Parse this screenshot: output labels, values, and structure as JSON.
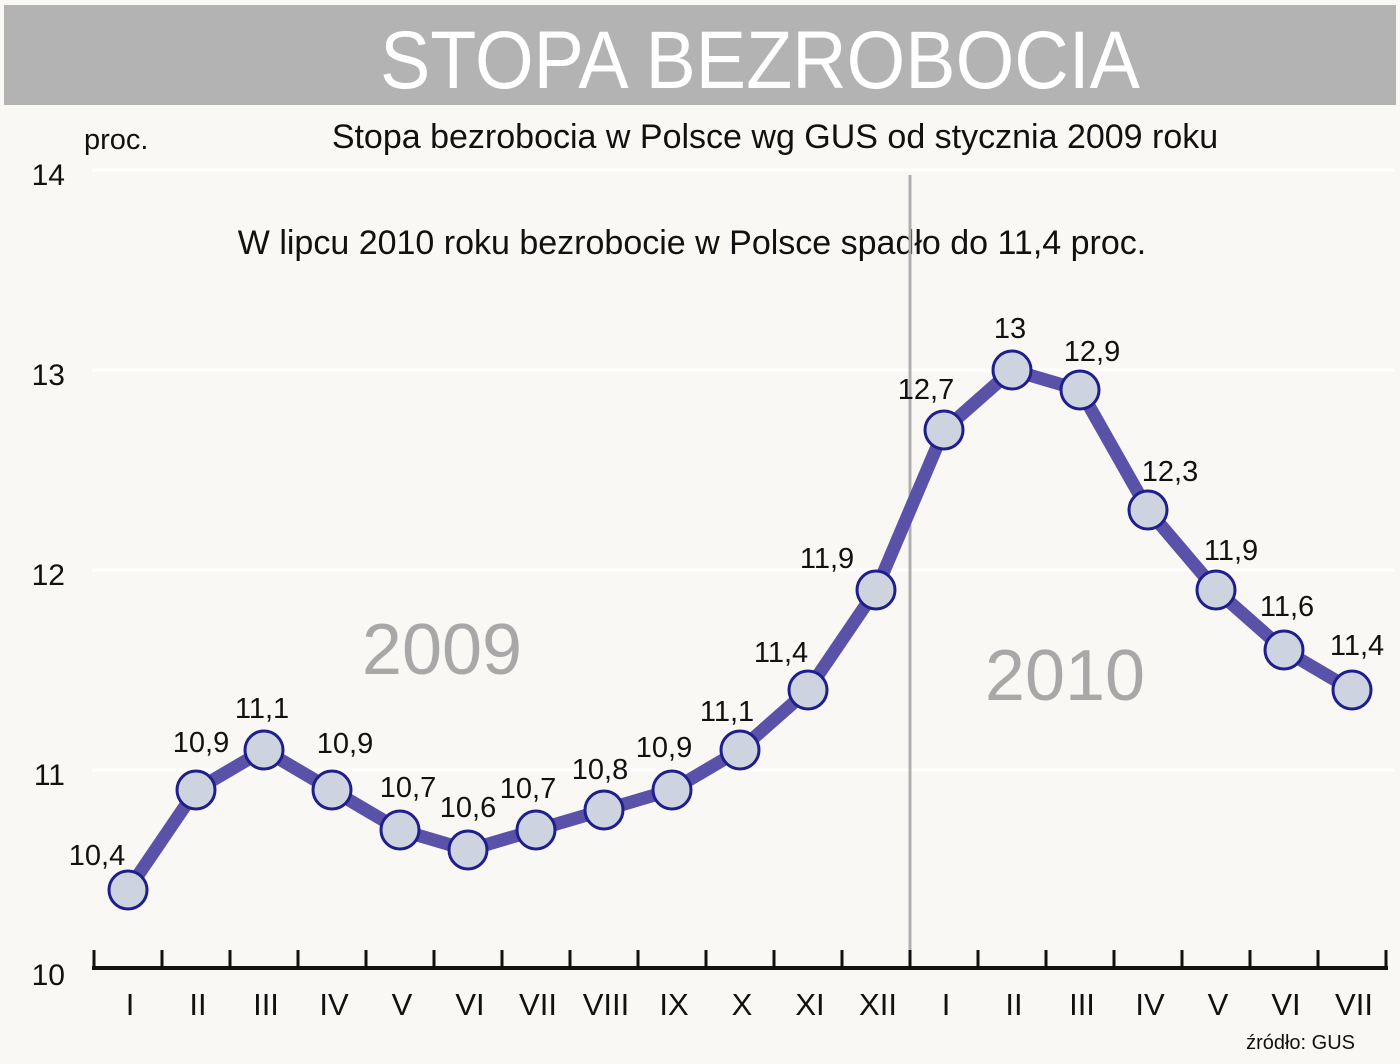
{
  "chart_data": {
    "type": "line",
    "banner_title": "STOPA BEZROBOCIA",
    "title": "Stopa bezrobocia w Polsce wg GUS od stycznia 2009 roku",
    "subtitle": "W lipcu 2010 roku bezrobocie w Polsce spadło do 11,4 proc.",
    "ylabel": "proc.",
    "ylim": [
      10,
      14
    ],
    "yticks": [
      "10",
      "11",
      "12",
      "13",
      "14"
    ],
    "grid": true,
    "categories": [
      "I",
      "II",
      "III",
      "IV",
      "V",
      "VI",
      "VII",
      "VIII",
      "IX",
      "X",
      "XI",
      "XII",
      "I",
      "II",
      "III",
      "IV",
      "V",
      "VI",
      "VII"
    ],
    "series": [
      {
        "name": "Stopa bezrobocia",
        "values": [
          10.4,
          10.9,
          11.1,
          10.9,
          10.7,
          10.6,
          10.7,
          10.8,
          10.9,
          11.1,
          11.4,
          11.9,
          12.7,
          13.0,
          12.9,
          12.3,
          11.9,
          11.6,
          11.4
        ]
      }
    ],
    "data_labels": [
      "10,4",
      "10,9",
      "11,1",
      "10,9",
      "10,7",
      "10,6",
      "10,7",
      "10,8",
      "10,9",
      "11,1",
      "11,4",
      "11,9",
      "12,7",
      "13",
      "12,9",
      "12,3",
      "11,9",
      "11,6",
      "11,4"
    ],
    "year_labels": [
      "2009",
      "2010"
    ],
    "source": "źródło: GUS",
    "colors": {
      "banner": "#b3b3b3",
      "line": "#5a52a8",
      "marker_fill": "#cdd4e0",
      "marker_stroke": "#1f1f8c",
      "year_text": "#a8a8a8"
    }
  }
}
